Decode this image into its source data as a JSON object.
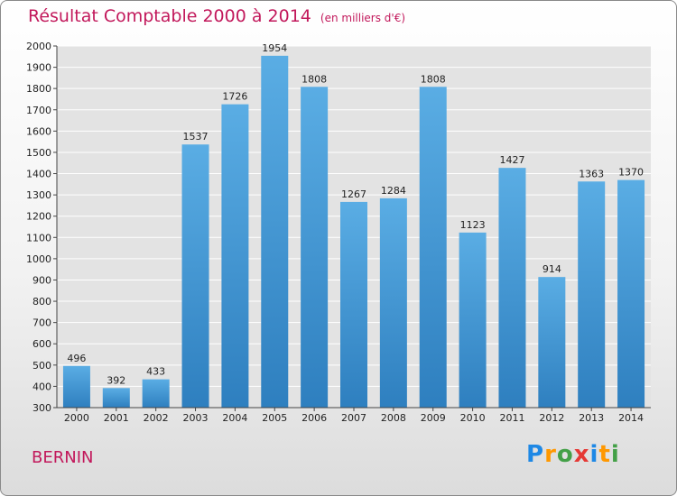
{
  "title": "Résultat Comptable 2000 à 2014",
  "unit_note": "(en milliers d'€)",
  "commune": "BERNIN",
  "brand": {
    "letters": [
      "P",
      "r",
      "o",
      "x",
      "i",
      "t",
      "i"
    ],
    "colors": [
      "#1e88e5",
      "#ff9800",
      "#43a047",
      "#e53935",
      "#1e88e5",
      "#ff9800",
      "#43a047"
    ]
  },
  "colors": {
    "bar_top": "#5aade4",
    "bar_bottom": "#2e7fbf",
    "accent": "#c2185b",
    "grid": "#ffffff"
  },
  "chart_data": {
    "type": "bar",
    "title": "Résultat Comptable 2000 à 2014",
    "xlabel": "",
    "ylabel": "",
    "categories": [
      "2000",
      "2001",
      "2002",
      "2003",
      "2004",
      "2005",
      "2006",
      "2007",
      "2008",
      "2009",
      "2010",
      "2011",
      "2012",
      "2013",
      "2014"
    ],
    "values": [
      496,
      392,
      433,
      1537,
      1726,
      1954,
      1808,
      1267,
      1284,
      1808,
      1123,
      1427,
      914,
      1363,
      1370
    ],
    "ylim": [
      300,
      2000
    ],
    "yticks": [
      300,
      400,
      500,
      600,
      700,
      800,
      900,
      1000,
      1100,
      1200,
      1300,
      1400,
      1500,
      1600,
      1700,
      1800,
      1900,
      2000
    ],
    "grid": true
  }
}
